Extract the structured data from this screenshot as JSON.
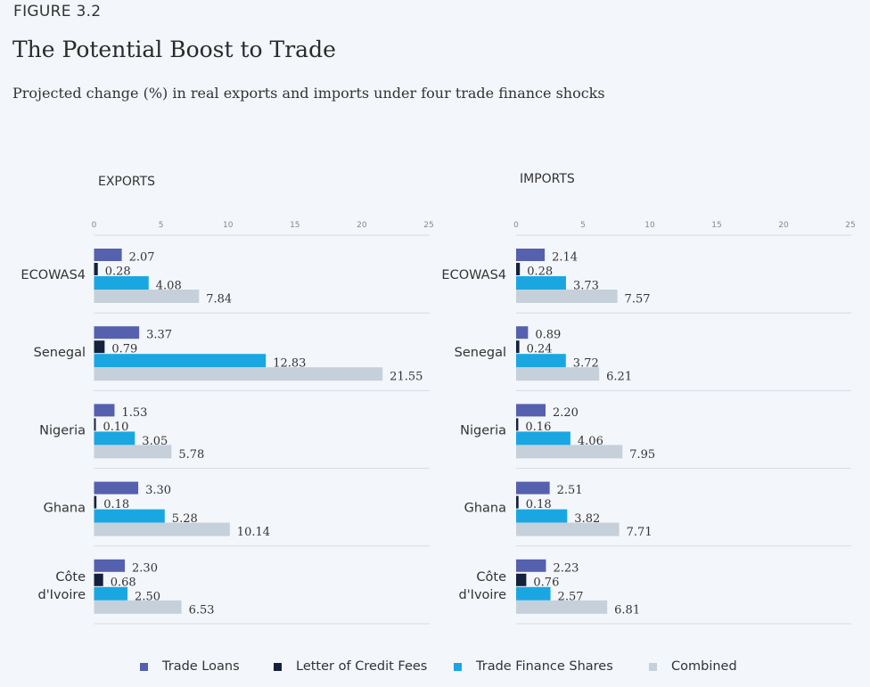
{
  "figure_label": "FIGURE 3.2",
  "title": "The Potential Boost to Trade",
  "subtitle": "Projected change (%) in real exports and imports under four trade finance shocks",
  "colors": {
    "trade_loans": "#5560ae",
    "lc_fees": "#14213d",
    "tf_shares": "#1aa7e1",
    "combined": "#c5d0da",
    "gridline": "#d6dce3"
  },
  "legend": [
    {
      "label": "Trade Loans",
      "color": "#5560ae"
    },
    {
      "label": "Letter of Credit Fees",
      "color": "#14213d"
    },
    {
      "label": "Trade Finance Shares",
      "color": "#1aa7e1"
    },
    {
      "label": "Combined",
      "color": "#c5d0da"
    }
  ],
  "chart_data": [
    {
      "type": "bar",
      "orientation": "horizontal",
      "title": "EXPORTS",
      "categories": [
        "ECOWAS4",
        "Senegal",
        "Nigeria",
        "Ghana",
        "Côte d'Ivoire"
      ],
      "category_display": [
        [
          "ECOWAS4"
        ],
        [
          "Senegal"
        ],
        [
          "Nigeria"
        ],
        [
          "Ghana"
        ],
        [
          "Côte",
          "d'Ivoire"
        ]
      ],
      "xlim": [
        0,
        25
      ],
      "xticks": [
        0,
        5,
        10,
        15,
        20,
        25
      ],
      "series": [
        {
          "name": "Trade Loans",
          "values": [
            2.07,
            3.37,
            1.53,
            3.3,
            2.3
          ],
          "labels": [
            "2.07",
            "3.37",
            "1.53",
            "3.30",
            "2.30"
          ]
        },
        {
          "name": "Letter of Credit Fees",
          "values": [
            0.28,
            0.79,
            0.1,
            0.18,
            0.68
          ],
          "labels": [
            "0.28",
            "0.79",
            "0.10",
            "0.18",
            "0.68"
          ]
        },
        {
          "name": "Trade Finance Shares",
          "values": [
            4.08,
            12.83,
            3.05,
            5.28,
            2.5
          ],
          "labels": [
            "4.08",
            "12.83",
            "3.05",
            "5.28",
            "2.50"
          ]
        },
        {
          "name": "Combined",
          "values": [
            7.84,
            21.55,
            5.78,
            10.14,
            6.53
          ],
          "labels": [
            "7.84",
            "21.55",
            "5.78",
            "10.14",
            "6.53"
          ]
        }
      ]
    },
    {
      "type": "bar",
      "orientation": "horizontal",
      "title": "IMPORTS",
      "categories": [
        "ECOWAS4",
        "Senegal",
        "Nigeria",
        "Ghana",
        "Côte d'Ivoire"
      ],
      "category_display": [
        [
          "ECOWAS4"
        ],
        [
          "Senegal"
        ],
        [
          "Nigeria"
        ],
        [
          "Ghana"
        ],
        [
          "Côte",
          "d'Ivoire"
        ]
      ],
      "xlim": [
        0,
        25
      ],
      "xticks": [
        0,
        5,
        10,
        15,
        20,
        25
      ],
      "series": [
        {
          "name": "Trade Loans",
          "values": [
            2.14,
            0.89,
            2.2,
            2.51,
            2.23
          ],
          "labels": [
            "2.14",
            "0.89",
            "2.20",
            "2.51",
            "2.23"
          ]
        },
        {
          "name": "Letter of Credit Fees",
          "values": [
            0.28,
            0.24,
            0.16,
            0.18,
            0.76
          ],
          "labels": [
            "0.28",
            "0.24",
            "0.16",
            "0.18",
            "0.76"
          ]
        },
        {
          "name": "Trade Finance Shares",
          "values": [
            3.73,
            3.72,
            4.06,
            3.82,
            2.57
          ],
          "labels": [
            "3.73",
            "3.72",
            "4.06",
            "3.82",
            "2.57"
          ]
        },
        {
          "name": "Combined",
          "values": [
            7.57,
            6.21,
            7.95,
            7.71,
            6.81
          ],
          "labels": [
            "7.57",
            "6.21",
            "7.95",
            "7.71",
            "6.81"
          ]
        }
      ]
    }
  ]
}
